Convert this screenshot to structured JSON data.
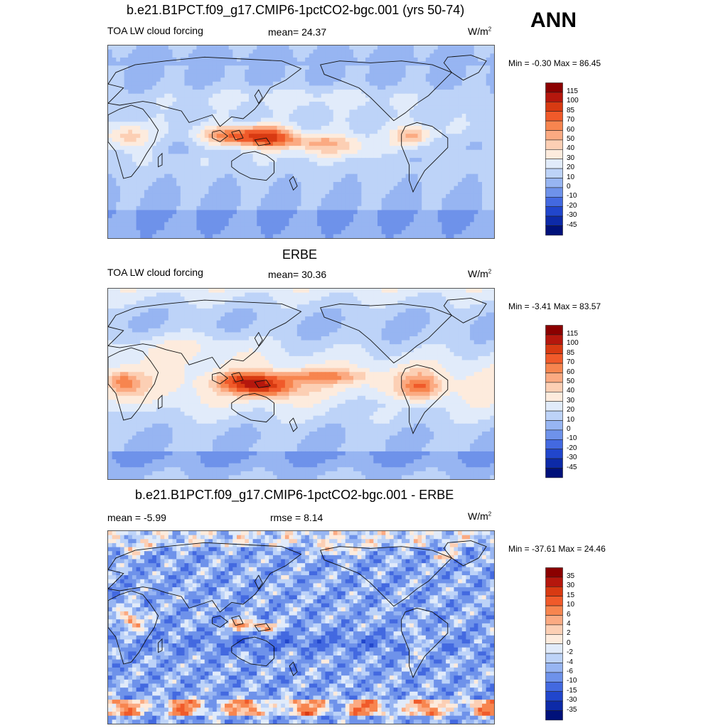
{
  "header": {
    "season": "ANN"
  },
  "chart_data": [
    {
      "type": "heatmap",
      "title": "b.e21.B1PCT.f09_g17.CMIP6-1pctCO2-bgc.001 (yrs 50-74)",
      "left_label": "TOA LW cloud forcing",
      "center_label": "mean=  24.37",
      "units": "W/m",
      "units_exp": "2",
      "minmax": "Min =  -0.30 Max =  86.45",
      "mean": 24.37,
      "min": -0.3,
      "max": 86.45,
      "colorbar": {
        "levels": [
          "115",
          "100",
          "85",
          "70",
          "60",
          "50",
          "40",
          "30",
          "20",
          "10",
          "0",
          "-10",
          "-20",
          "-30",
          "-45"
        ],
        "colors": [
          "#8b0000",
          "#b5170d",
          "#d83a12",
          "#f05a2a",
          "#f7854f",
          "#fbaa82",
          "#fccfb4",
          "#fdebdd",
          "#e1ebfa",
          "#bdd3f8",
          "#97b5f2",
          "#6e92ea",
          "#4369e0",
          "#2146cc",
          "#0d2aa8",
          "#00117a"
        ]
      },
      "field": "model"
    },
    {
      "type": "heatmap",
      "title": "ERBE",
      "left_label": "TOA LW cloud forcing",
      "center_label": "mean=  30.36",
      "units": "W/m",
      "units_exp": "2",
      "minmax": "Min =  -3.41 Max =  83.57",
      "mean": 30.36,
      "min": -3.41,
      "max": 83.57,
      "colorbar": {
        "levels": [
          "115",
          "100",
          "85",
          "70",
          "60",
          "50",
          "40",
          "30",
          "20",
          "10",
          "0",
          "-10",
          "-20",
          "-30",
          "-45"
        ],
        "colors": [
          "#8b0000",
          "#b5170d",
          "#d83a12",
          "#f05a2a",
          "#f7854f",
          "#fbaa82",
          "#fccfb4",
          "#fdebdd",
          "#e1ebfa",
          "#bdd3f8",
          "#97b5f2",
          "#6e92ea",
          "#4369e0",
          "#2146cc",
          "#0d2aa8",
          "#00117a"
        ]
      },
      "field": "obs"
    },
    {
      "type": "heatmap",
      "title": "b.e21.B1PCT.f09_g17.CMIP6-1pctCO2-bgc.001 - ERBE",
      "left_label": "mean =  -5.99",
      "center_label": "rmse =   8.14",
      "units": "W/m",
      "units_exp": "2",
      "minmax": "Min = -37.61 Max =  24.46",
      "mean": -5.99,
      "rmse": 8.14,
      "min": -37.61,
      "max": 24.46,
      "colorbar": {
        "levels": [
          "35",
          "30",
          "15",
          "10",
          "6",
          "4",
          "2",
          "0",
          "-2",
          "-4",
          "-6",
          "-10",
          "-15",
          "-30",
          "-35"
        ],
        "colors": [
          "#8b0000",
          "#b5170d",
          "#d83a12",
          "#f05a2a",
          "#f7854f",
          "#fbaa82",
          "#fccfb4",
          "#fdebdd",
          "#e1ebfa",
          "#bdd3f8",
          "#97b5f2",
          "#6e92ea",
          "#4369e0",
          "#2146cc",
          "#0d2aa8",
          "#00117a"
        ]
      },
      "field": "diff"
    }
  ]
}
